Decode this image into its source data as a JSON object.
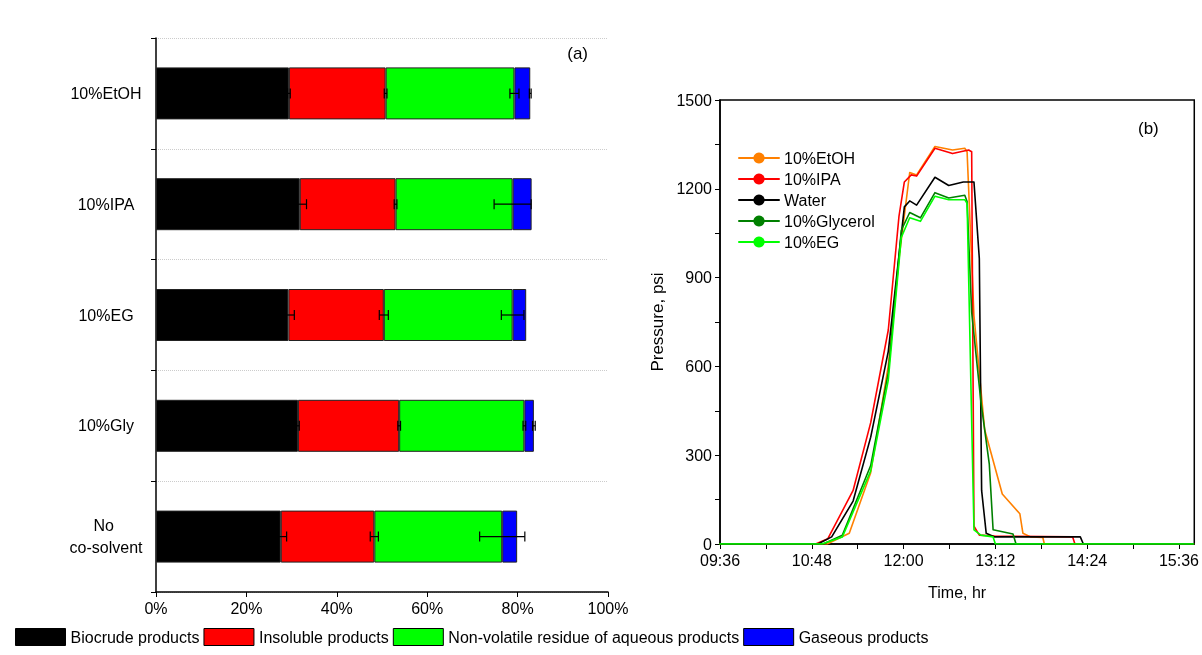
{
  "chart_data": [
    {
      "type": "bar",
      "orientation": "horizontal",
      "stacked": true,
      "categories": [
        "10%EtOH",
        "10%IPA",
        "10%EG",
        "10%Gly",
        "No co-solvent"
      ],
      "series": [
        {
          "name": "Biocrude products",
          "color": "#000000",
          "values": [
            29.4,
            31.8,
            29.3,
            31.4,
            27.6
          ],
          "errors": [
            0.3,
            1.5,
            1.3,
            0.3,
            1.3
          ]
        },
        {
          "name": "Insoluble products",
          "color": "#ff0000",
          "values": [
            21.4,
            21.2,
            21.1,
            22.4,
            20.7
          ],
          "errors": [
            0.3,
            0.3,
            1.0,
            0.3,
            0.9
          ]
        },
        {
          "name": "Non-volatile residue of aqueous products",
          "color": "#00ff00",
          "values": [
            28.5,
            25.9,
            28.5,
            27.7,
            28.3
          ],
          "errors": [
            1.0,
            4.1,
            2.5,
            0.3,
            5.0
          ]
        },
        {
          "name": "Gaseous products",
          "color": "#0000ff",
          "values": [
            3.5,
            4.2,
            3.0,
            2.1,
            3.3
          ],
          "errors": [
            0.2,
            null,
            null,
            0.3,
            null
          ]
        }
      ],
      "xlim": [
        0,
        100
      ],
      "xticks": [
        {
          "value": 0,
          "label": "0%"
        },
        {
          "value": 20,
          "label": "20%"
        },
        {
          "value": 40,
          "label": "40%"
        },
        {
          "value": 60,
          "label": "60%"
        },
        {
          "value": 80,
          "label": "80%"
        },
        {
          "value": 100,
          "label": "100%"
        }
      ],
      "grid": "y",
      "legend": "bottom",
      "annotations": [
        "(a)"
      ]
    },
    {
      "type": "line",
      "xlabel": "Time, hr",
      "ylabel": "Pressure, psi",
      "marker": "none",
      "legend": "top left",
      "annotations": [
        "(b)"
      ],
      "xlim": [
        9.6,
        15.8
      ],
      "xticks": [
        {
          "value": 9.6,
          "label": "09:36"
        },
        {
          "value": 10.2,
          "label": null
        },
        {
          "value": 10.8,
          "label": "10:48"
        },
        {
          "value": 11.4,
          "label": null
        },
        {
          "value": 12,
          "label": "12:00"
        },
        {
          "value": 12.6,
          "label": null
        },
        {
          "value": 13.2,
          "label": "13:12"
        },
        {
          "value": 13.8,
          "label": null
        },
        {
          "value": 14.4,
          "label": "14:24"
        },
        {
          "value": 15,
          "label": null
        },
        {
          "value": 15.6,
          "label": "15:36"
        }
      ],
      "ylim": [
        0,
        1500
      ],
      "yticks": [
        0,
        {
          "value": 150,
          "label": null
        },
        300,
        {
          "value": 450,
          "label": null
        },
        600,
        {
          "value": 750,
          "label": null
        },
        900,
        {
          "value": 1050,
          "label": null
        },
        1200,
        {
          "value": 1350,
          "label": null
        },
        1500
      ],
      "series": [
        {
          "name": "10%EtOH",
          "color": "#ff8000",
          "x": [
            9.6,
            11.0,
            11.29,
            11.57,
            11.8,
            11.94,
            12.08,
            12.17,
            12.41,
            12.64,
            12.8,
            12.83,
            12.92,
            13.06,
            13.29,
            13.52,
            13.56,
            13.66,
            13.82,
            13.84,
            15.79
          ],
          "values": [
            0,
            0,
            36,
            241,
            602,
            964,
            1255,
            1247,
            1343,
            1331,
            1337,
            1325,
            771,
            386,
            169,
            102,
            36,
            24,
            22,
            0,
            0
          ]
        },
        {
          "name": "10%IPA",
          "color": "#ff0000",
          "x": [
            9.6,
            10.85,
            11.01,
            11.34,
            11.57,
            11.8,
            11.94,
            12.01,
            12.1,
            12.17,
            12.41,
            12.64,
            12.85,
            12.89,
            12.92,
            12.99,
            13.19,
            14.21,
            14.24,
            15.79
          ],
          "values": [
            0,
            0,
            18,
            181,
            410,
            723,
            1108,
            1223,
            1247,
            1243,
            1337,
            1319,
            1331,
            1325,
            60,
            30,
            27,
            24,
            0,
            0
          ]
        },
        {
          "name": "Water",
          "color": "#000000",
          "x": [
            9.6,
            10.88,
            11.06,
            11.34,
            11.57,
            11.8,
            11.94,
            12.01,
            12.08,
            12.17,
            12.41,
            12.59,
            12.78,
            12.92,
            12.99,
            13.02,
            13.08,
            13.19,
            14.31,
            14.35,
            15.79
          ],
          "values": [
            0,
            0,
            24,
            145,
            361,
            651,
            976,
            1139,
            1159,
            1145,
            1239,
            1211,
            1223,
            1223,
            964,
            181,
            36,
            24,
            24,
            0,
            0
          ]
        },
        {
          "name": "10%Glycerol",
          "color": "#008000",
          "x": [
            9.6,
            10.95,
            11.2,
            11.57,
            11.8,
            11.97,
            12.08,
            12.22,
            12.41,
            12.59,
            12.8,
            12.83,
            12.89,
            13.01,
            13.12,
            13.17,
            13.43,
            13.47,
            15.79
          ],
          "values": [
            0,
            0,
            30,
            265,
            578,
            1060,
            1120,
            1102,
            1187,
            1169,
            1178,
            1157,
            783,
            482,
            271,
            48,
            34,
            0,
            0
          ]
        },
        {
          "name": "10%EG",
          "color": "#00ff00",
          "x": [
            9.6,
            10.93,
            11.2,
            11.57,
            11.8,
            11.97,
            12.08,
            12.22,
            12.41,
            12.59,
            12.8,
            12.83,
            12.92,
            13.01,
            13.17,
            13.2,
            15.79
          ],
          "values": [
            0,
            0,
            24,
            247,
            554,
            1036,
            1102,
            1090,
            1175,
            1163,
            1163,
            1151,
            48,
            30,
            24,
            0,
            0
          ]
        }
      ]
    }
  ]
}
